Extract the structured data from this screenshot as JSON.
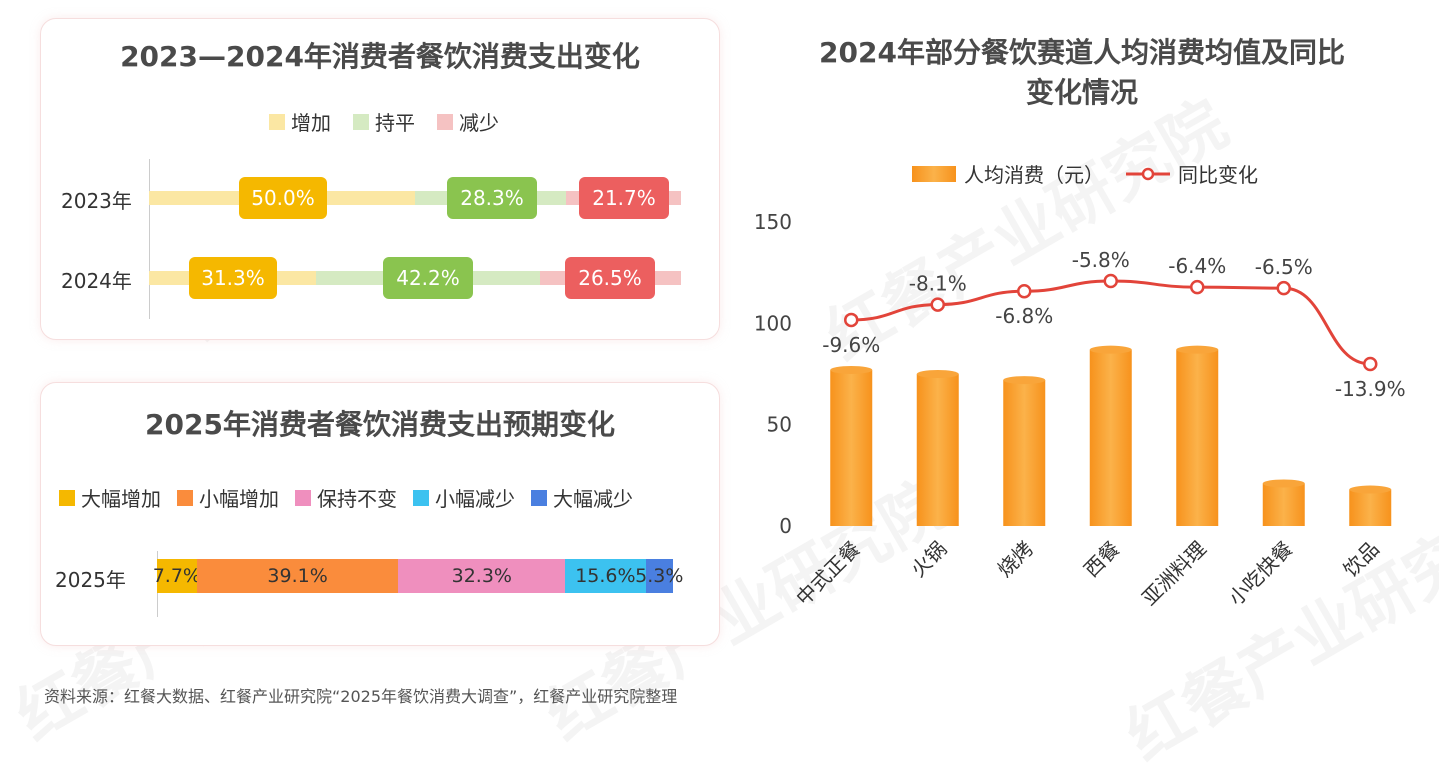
{
  "watermark": "红餐产业研究院",
  "panel1": {
    "title": "2023—2024年消费者餐饮消费支出变化",
    "legend": [
      {
        "label": "增加",
        "color": "#fbe7a3"
      },
      {
        "label": "持平",
        "color": "#d5eac2"
      },
      {
        "label": "减少",
        "color": "#f5c2c2"
      }
    ],
    "rows": [
      {
        "label": "2023年",
        "values": [
          "50.0%",
          "28.3%",
          "21.7%"
        ]
      },
      {
        "label": "2024年",
        "values": [
          "31.3%",
          "42.2%",
          "26.5%"
        ]
      }
    ],
    "pill_colors": [
      "#f5b800",
      "#8ac44f",
      "#ec5f5f"
    ]
  },
  "panel2": {
    "title": "2025年消费者餐饮消费支出预期变化",
    "legend": [
      {
        "label": "大幅增加",
        "color": "#f5b800"
      },
      {
        "label": "小幅增加",
        "color": "#fa8c3c"
      },
      {
        "label": "保持不变",
        "color": "#ef8fbe"
      },
      {
        "label": "小幅减少",
        "color": "#3cc2f0"
      },
      {
        "label": "大幅减少",
        "color": "#4a7fe0"
      }
    ],
    "row_label": "2025年",
    "values": [
      7.7,
      39.1,
      32.3,
      15.6,
      5.3
    ],
    "value_labels": [
      "7.7%",
      "39.1%",
      "32.3%",
      "15.6%",
      "5.3%"
    ]
  },
  "chart_data": {
    "type": "bar+line",
    "title": "2024年部分餐饮赛道人均消费均值及同比变化情况",
    "title_lines": [
      "2024年部分餐饮赛道人均消费均值及同比",
      "变化情况"
    ],
    "legend": [
      "人均消费（元）",
      "同比变化"
    ],
    "categories": [
      "中式正餐",
      "火锅",
      "烧烤",
      "西餐",
      "亚洲料理",
      "小吃快餐",
      "饮品"
    ],
    "series": [
      {
        "name": "人均消费（元）",
        "type": "bar",
        "values": [
          77,
          75,
          72,
          87,
          87,
          21,
          18
        ]
      },
      {
        "name": "同比变化",
        "type": "line",
        "values": [
          -9.6,
          -8.1,
          -6.8,
          -5.8,
          -6.4,
          -6.5,
          -13.9
        ],
        "labels": [
          "-9.6%",
          "-8.1%",
          "-6.8%",
          "-5.8%",
          "-6.4%",
          "-6.5%",
          "-13.9%"
        ]
      }
    ],
    "yticks": [
      "0",
      "50",
      "100",
      "150"
    ],
    "ylim": [
      0,
      150
    ],
    "bar_color": "#f7941d",
    "line_color": "#e2443a"
  },
  "footer": "资料来源：红餐大数据、红餐产业研究院“2025年餐饮消费大调查”，红餐产业研究院整理"
}
